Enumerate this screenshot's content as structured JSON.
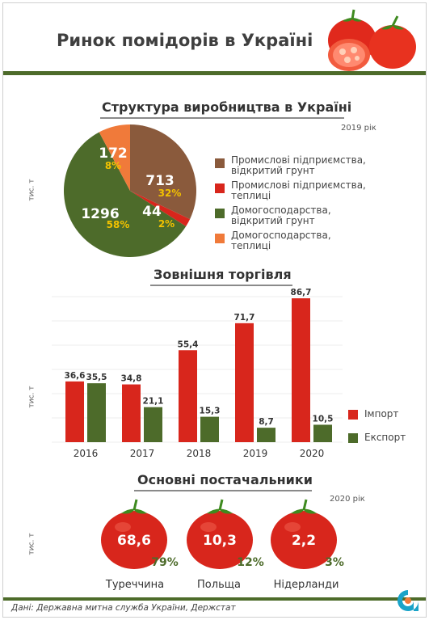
{
  "header": {
    "title": "Ринок помідорів в Україні"
  },
  "colors": {
    "brown": "#8a5a3c",
    "red": "#d8261c",
    "green": "#4d6b2a",
    "orange": "#f07a3a",
    "yellow": "#f2c200",
    "import": "#d8261c",
    "export": "#4d6b2a"
  },
  "sections": {
    "production": {
      "title": "Структура виробництва в Україні",
      "year": "2019 рік",
      "unit": "тис. т"
    },
    "trade": {
      "title": "Зовнішня торгівля",
      "unit": "тис. т"
    },
    "suppliers": {
      "title": "Основні постачальники",
      "year": "2020 рік",
      "unit": "тис. т"
    }
  },
  "chart_data": [
    {
      "type": "pie",
      "title": "Структура виробництва в Україні",
      "unit": "тис. т",
      "slices": [
        {
          "label": "Промислові підприємства,\nвідкритий грунт",
          "value": 713,
          "percent": "32%",
          "color": "#8a5a3c"
        },
        {
          "label": "Промислові підприємства,\nтеплиці",
          "value": 44,
          "percent": "2%",
          "color": "#d8261c"
        },
        {
          "label": "Домогосподарства,\nвідкритий грунт",
          "value": 1296,
          "percent": "58%",
          "color": "#4d6b2a"
        },
        {
          "label": "Домогосподарства,\nтеплиці",
          "value": 172,
          "percent": "8%",
          "color": "#f07a3a"
        }
      ]
    },
    {
      "type": "bar",
      "title": "Зовнішня торгівля",
      "unit": "тис. т",
      "categories": [
        "2016",
        "2017",
        "2018",
        "2019",
        "2020"
      ],
      "series": [
        {
          "name": "Імпорт",
          "values": [
            36.6,
            34.8,
            55.4,
            71.7,
            86.7
          ],
          "color": "#d8261c"
        },
        {
          "name": "Експорт",
          "values": [
            35.5,
            21.1,
            15.3,
            8.7,
            10.5
          ],
          "color": "#4d6b2a"
        }
      ],
      "ylim": [
        0,
        86.7
      ]
    },
    {
      "type": "table",
      "title": "Основні постачальники",
      "unit": "тис. т",
      "rows": [
        {
          "country": "Туреччина",
          "value": "68,6",
          "share": "79%"
        },
        {
          "country": "Польща",
          "value": "10,3",
          "share": "12%"
        },
        {
          "country": "Нідерланди",
          "value": "2,2",
          "share": "3%"
        }
      ]
    }
  ],
  "footer": {
    "source": "Дані: Державна митна служба України, Держстат"
  },
  "icons": {
    "header_art": "tomatoes-icon",
    "logo": "brand-logo-icon"
  }
}
